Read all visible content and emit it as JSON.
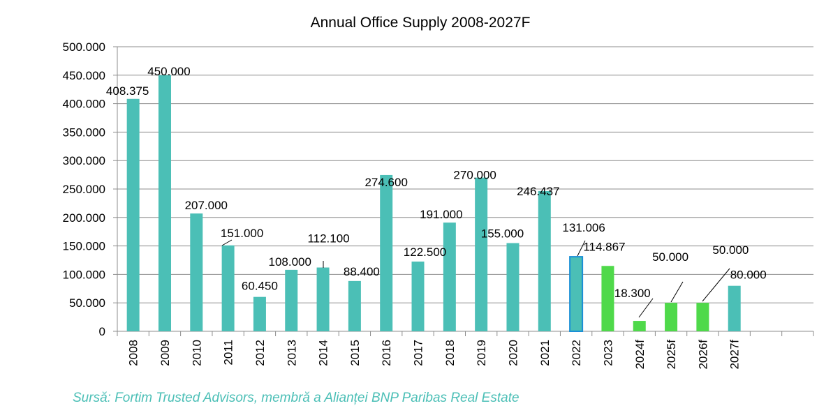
{
  "chart_data": {
    "type": "bar",
    "title": "Annual Office Supply 2008-2027F",
    "xlabel": "",
    "ylabel": "",
    "ylim": [
      0,
      500000
    ],
    "yticks": [
      {
        "value": 0,
        "label": "0"
      },
      {
        "value": 50000,
        "label": "50.000"
      },
      {
        "value": 100000,
        "label": "100.000"
      },
      {
        "value": 150000,
        "label": "150.000"
      },
      {
        "value": 200000,
        "label": "200.000"
      },
      {
        "value": 250000,
        "label": "250.000"
      },
      {
        "value": 300000,
        "label": "300.000"
      },
      {
        "value": 350000,
        "label": "350.000"
      },
      {
        "value": 400000,
        "label": "400.000"
      },
      {
        "value": 450000,
        "label": "450.000"
      },
      {
        "value": 500000,
        "label": "500.000"
      }
    ],
    "grid": true,
    "legend": "none",
    "slots": 22,
    "categories": [
      "2008",
      "2009",
      "2010",
      "2011",
      "2012",
      "2013",
      "2014",
      "2015",
      "2016",
      "2017",
      "2018",
      "2019",
      "2020",
      "2021",
      "2022",
      "2023",
      "2024f",
      "2025f",
      "2026f",
      "2027f"
    ],
    "values": [
      408375,
      450000,
      207000,
      151000,
      60450,
      108000,
      112100,
      88400,
      274600,
      122500,
      191000,
      270000,
      155000,
      246437,
      131006,
      114867,
      18300,
      50000,
      50000,
      80000
    ],
    "labels": [
      "408.375",
      "450.000",
      "207.000",
      "151.000",
      "60.450",
      "108.000",
      "112.100",
      "88.400",
      "274.600",
      "122.500",
      "191.000",
      "270.000",
      "155.000",
      "246.437",
      "131.006",
      "114.867",
      "18.300",
      "50.000",
      "50.000",
      "80.000"
    ],
    "colors": {
      "historical": "#4bbfb6",
      "current_fill": "#4bbfb6",
      "current_border": "#1a8fd6",
      "forecast": "#4fd94a"
    },
    "bar_styles": [
      "historical",
      "historical",
      "historical",
      "historical",
      "historical",
      "historical",
      "historical",
      "historical",
      "historical",
      "historical",
      "historical",
      "historical",
      "historical",
      "historical",
      "current",
      "forecast",
      "forecast",
      "forecast",
      "forecast",
      "historical"
    ]
  },
  "source": "Sursă: Fortim Trusted Advisors, membră a Alianței BNP Paribas Real Estate"
}
